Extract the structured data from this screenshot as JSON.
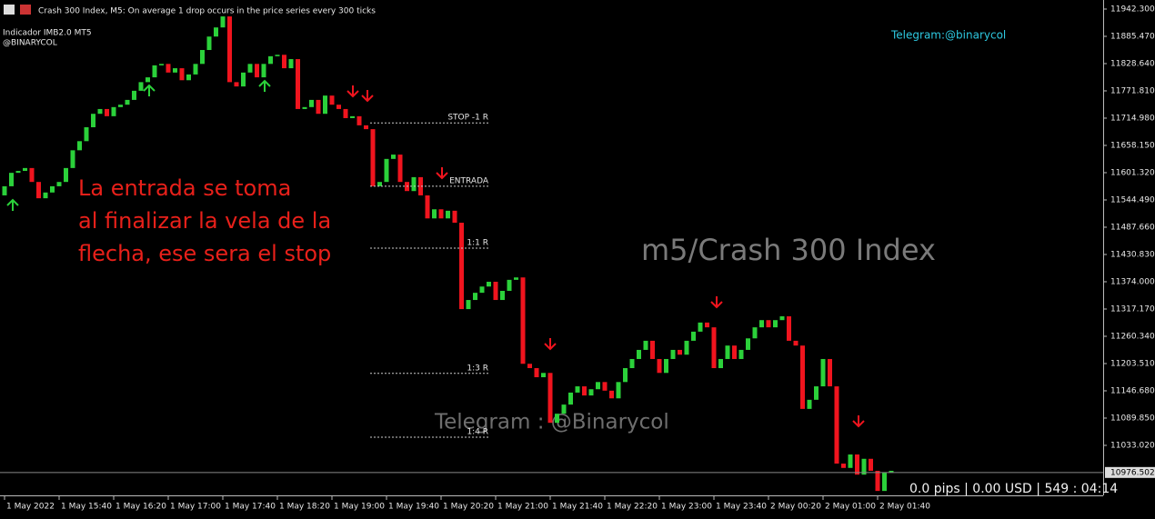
{
  "chart_data": {
    "type": "candlestick",
    "title": "Crash 300 Index, M5:  On average 1 drop occurs in the price series every 300 ticks",
    "indicator": "Indicador IMB2.0 MT5",
    "author": "@BINARYCOL",
    "telegram": "Telegram:@binarycol",
    "annotation_lines": [
      "La entrada se toma",
      "al finalizar la vela de la",
      "flecha, ese sera el stop"
    ],
    "watermark": "m5/Crash 300 Index",
    "watermark_telegram": "Telegram : @Binarycol",
    "status": "0.0 pips | 0.00 USD | 549 : 04:14",
    "up_color": "#2bd13a",
    "down_color": "#f0141e",
    "open": [
      11554,
      11573,
      11601,
      11605,
      11611,
      11582,
      11548,
      11560,
      11573,
      11582,
      11611,
      11648,
      11667,
      11696,
      11724,
      11734,
      11719,
      11738,
      11743,
      11753,
      11772,
      11790,
      11800,
      11825,
      11828,
      11810,
      11819,
      11794,
      11806,
      11828,
      11857,
      11885,
      11904,
      11927,
      11790,
      11781,
      11810,
      11828,
      11800,
      11828,
      11844,
      11847,
      11819,
      11838,
      11734,
      11738,
      11753,
      11724,
      11762,
      11743,
      11734,
      11715,
      11719,
      11700,
      11692,
      11573,
      11582,
      11630,
      11639,
      11582,
      11563,
      11592,
      11554,
      11506,
      11525,
      11506,
      11522,
      11497,
      11317,
      11336,
      11351,
      11364,
      11374,
      11336,
      11355,
      11378,
      11383,
      11203,
      11194,
      11175,
      11184,
      11080,
      11099,
      11118,
      11143,
      11156,
      11137,
      11150,
      11165,
      11147,
      11131,
      11165,
      11194,
      11213,
      11232,
      11251,
      11213,
      11184,
      11213,
      11232,
      11222,
      11251,
      11270,
      11289,
      11279,
      11194,
      11213,
      11241,
      11213,
      11232,
      11256,
      11279,
      11294,
      11279,
      11294,
      11302,
      11251,
      11241,
      11109,
      11128,
      11156,
      11213,
      11156,
      10995,
      10986,
      11014,
      10972,
      11005,
      10980,
      10938,
      10976
    ],
    "close": [
      11573,
      11601,
      11605,
      11611,
      11582,
      11548,
      11560,
      11573,
      11582,
      11611,
      11648,
      11667,
      11696,
      11724,
      11734,
      11719,
      11738,
      11743,
      11753,
      11772,
      11790,
      11800,
      11825,
      11828,
      11810,
      11819,
      11794,
      11806,
      11828,
      11857,
      11885,
      11904,
      11927,
      11790,
      11781,
      11810,
      11828,
      11800,
      11828,
      11844,
      11847,
      11819,
      11838,
      11734,
      11738,
      11753,
      11724,
      11762,
      11743,
      11734,
      11715,
      11719,
      11700,
      11692,
      11573,
      11582,
      11630,
      11639,
      11582,
      11563,
      11592,
      11554,
      11506,
      11525,
      11506,
      11522,
      11497,
      11317,
      11336,
      11351,
      11364,
      11374,
      11336,
      11355,
      11378,
      11383,
      11203,
      11194,
      11175,
      11184,
      11080,
      11099,
      11118,
      11143,
      11156,
      11137,
      11150,
      11165,
      11147,
      11131,
      11165,
      11194,
      11213,
      11232,
      11251,
      11213,
      11184,
      11213,
      11232,
      11222,
      11251,
      11270,
      11289,
      11279,
      11194,
      11213,
      11241,
      11213,
      11232,
      11256,
      11279,
      11294,
      11279,
      11294,
      11302,
      11251,
      11241,
      11109,
      11128,
      11156,
      11213,
      11156,
      10995,
      10986,
      11014,
      10972,
      11005,
      10980,
      10938,
      10976,
      10980
    ],
    "levels": [
      {
        "label": "STOP -1 R",
        "value": 11705
      },
      {
        "label": "ENTRADA",
        "value": 11573
      },
      {
        "label": "1:1 R",
        "value": 11444
      },
      {
        "label": "1:3 R",
        "value": 11183
      },
      {
        "label": "1:4 R",
        "value": 11050
      }
    ],
    "last_price": {
      "value": 10976.502,
      "label": "10976.502"
    },
    "ylim": [
      10928.8,
      11961.2
    ],
    "yticks": [
      {
        "value": 11942.3,
        "label": "11942.300"
      },
      {
        "value": 11885.47,
        "label": "11885.470"
      },
      {
        "value": 11828.64,
        "label": "11828.640"
      },
      {
        "value": 11771.81,
        "label": "11771.810"
      },
      {
        "value": 11714.98,
        "label": "11714.980"
      },
      {
        "value": 11658.15,
        "label": "11658.150"
      },
      {
        "value": 11601.32,
        "label": "11601.320"
      },
      {
        "value": 11544.49,
        "label": "11544.490"
      },
      {
        "value": 11487.66,
        "label": "11487.660"
      },
      {
        "value": 11430.83,
        "label": "11430.830"
      },
      {
        "value": 11374,
        "label": "11374.000"
      },
      {
        "value": 11317.17,
        "label": "11317.170"
      },
      {
        "value": 11260.34,
        "label": "11260.340"
      },
      {
        "value": 11203.51,
        "label": "11203.510"
      },
      {
        "value": 11146.68,
        "label": "11146.680"
      },
      {
        "value": 11089.85,
        "label": "11089.850"
      },
      {
        "value": 11033.02,
        "label": "11033.020"
      }
    ],
    "xticks": [
      {
        "value": 0,
        "label": "1 May 2022"
      },
      {
        "value": 8,
        "label": "1 May 15:40"
      },
      {
        "value": 16,
        "label": "1 May 16:20"
      },
      {
        "value": 24,
        "label": "1 May 17:00"
      },
      {
        "value": 32,
        "label": "1 May 17:40"
      },
      {
        "value": 40,
        "label": "1 May 18:20"
      },
      {
        "value": 48,
        "label": "1 May 19:00"
      },
      {
        "value": 56,
        "label": "1 May 19:40"
      },
      {
        "value": 64,
        "label": "1 May 20:20"
      },
      {
        "value": 72,
        "label": "1 May 21:00"
      },
      {
        "value": 80,
        "label": "1 May 21:40"
      },
      {
        "value": 88,
        "label": "1 May 22:20"
      },
      {
        "value": 96,
        "label": "1 May 23:00"
      },
      {
        "value": 104,
        "label": "1 May 23:40"
      },
      {
        "value": 112,
        "label": "2 May 00:20"
      },
      {
        "value": 120,
        "label": "2 May 01:00"
      },
      {
        "value": 128,
        "label": "2 May 01:40"
      }
    ]
  }
}
